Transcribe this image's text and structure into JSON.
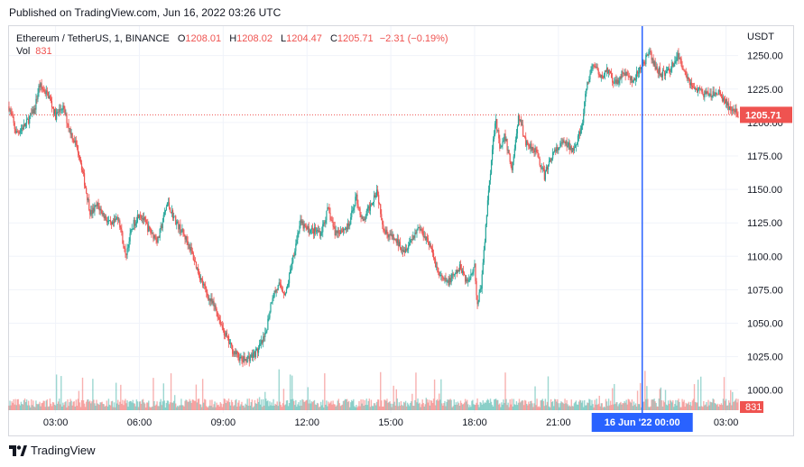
{
  "header": {
    "published": "Published on TradingView.com, Jun 16, 2022 03:26 UTC"
  },
  "legend": {
    "symbol": "Ethereum / TetherUS, 1, BINANCE",
    "open_label": "O",
    "open": "1208.01",
    "high_label": "H",
    "high": "1208.02",
    "low_label": "L",
    "low": "1204.47",
    "close_label": "C",
    "close": "1205.71",
    "change": "−2.31 (−0.19%)",
    "vol_label": "Vol",
    "vol": "831"
  },
  "footer": {
    "brand": "TradingView"
  },
  "colors": {
    "up": "#26a69a",
    "down": "#ef5350",
    "crosshair": "#2962ff",
    "grid": "#f0f3fa",
    "axis_text": "#131722"
  },
  "chart_data": {
    "type": "candlestick",
    "currency": "USDT",
    "ylim": [
      985,
      1272
    ],
    "y_ticks": [
      1000,
      1025,
      1050,
      1075,
      1100,
      1125,
      1150,
      1175,
      1200,
      1225,
      1250
    ],
    "y_tick_labels": [
      "1000.00",
      "1025.00",
      "1050.00",
      "1075.00",
      "1100.00",
      "1125.00",
      "1150.00",
      "1175.00",
      "1200.00",
      "1225.00",
      "1250.00"
    ],
    "x_ticks": [
      "03:00",
      "06:00",
      "09:00",
      "12:00",
      "15:00",
      "18:00",
      "21:00",
      "03:00"
    ],
    "x_tick_times": [
      "Jun 15 03:00",
      "Jun 15 06:00",
      "Jun 15 09:00",
      "Jun 15 12:00",
      "Jun 15 15:00",
      "Jun 15 18:00",
      "Jun 15 21:00",
      "Jun 16 03:00"
    ],
    "x_range": [
      "Jun 15 01:20",
      "Jun 16 03:26"
    ],
    "crosshair": {
      "time": "Jun 16 00:00",
      "label": "16 Jun '22   00:00"
    },
    "last_price": {
      "value": 1205.71,
      "label": "1205.71"
    },
    "volume_label": "831",
    "price_path": [
      [
        "Jun 15 01:20",
        1212
      ],
      [
        "Jun 15 01:35",
        1192
      ],
      [
        "Jun 15 01:55",
        1198
      ],
      [
        "Jun 15 02:15",
        1210
      ],
      [
        "Jun 15 02:25",
        1228
      ],
      [
        "Jun 15 02:45",
        1220
      ],
      [
        "Jun 15 03:00",
        1205
      ],
      [
        "Jun 15 03:15",
        1212
      ],
      [
        "Jun 15 03:30",
        1195
      ],
      [
        "Jun 15 03:50",
        1178
      ],
      [
        "Jun 15 04:05",
        1150
      ],
      [
        "Jun 15 04:15",
        1132
      ],
      [
        "Jun 15 04:30",
        1138
      ],
      [
        "Jun 15 05:00",
        1122
      ],
      [
        "Jun 15 05:15",
        1130
      ],
      [
        "Jun 15 05:30",
        1100
      ],
      [
        "Jun 15 05:45",
        1122
      ],
      [
        "Jun 15 06:00",
        1133
      ],
      [
        "Jun 15 06:20",
        1120
      ],
      [
        "Jun 15 06:40",
        1112
      ],
      [
        "Jun 15 07:00",
        1140
      ],
      [
        "Jun 15 07:20",
        1125
      ],
      [
        "Jun 15 07:45",
        1110
      ],
      [
        "Jun 15 08:00",
        1095
      ],
      [
        "Jun 15 08:15",
        1080
      ],
      [
        "Jun 15 08:30",
        1068
      ],
      [
        "Jun 15 08:45",
        1060
      ],
      [
        "Jun 15 09:00",
        1045
      ],
      [
        "Jun 15 09:20",
        1030
      ],
      [
        "Jun 15 09:40",
        1022
      ],
      [
        "Jun 15 10:00",
        1025
      ],
      [
        "Jun 15 10:15",
        1030
      ],
      [
        "Jun 15 10:30",
        1040
      ],
      [
        "Jun 15 10:45",
        1070
      ],
      [
        "Jun 15 11:00",
        1078
      ],
      [
        "Jun 15 11:15",
        1072
      ],
      [
        "Jun 15 11:30",
        1100
      ],
      [
        "Jun 15 11:45",
        1125
      ],
      [
        "Jun 15 12:00",
        1120
      ],
      [
        "Jun 15 12:30",
        1118
      ],
      [
        "Jun 15 12:45",
        1135
      ],
      [
        "Jun 15 13:00",
        1118
      ],
      [
        "Jun 15 13:30",
        1122
      ],
      [
        "Jun 15 13:45",
        1145
      ],
      [
        "Jun 15 14:00",
        1125
      ],
      [
        "Jun 15 14:30",
        1150
      ],
      [
        "Jun 15 14:45",
        1120
      ],
      [
        "Jun 15 15:00",
        1115
      ],
      [
        "Jun 15 15:30",
        1105
      ],
      [
        "Jun 15 16:00",
        1122
      ],
      [
        "Jun 15 16:20",
        1112
      ],
      [
        "Jun 15 16:45",
        1085
      ],
      [
        "Jun 15 17:00",
        1080
      ],
      [
        "Jun 15 17:15",
        1085
      ],
      [
        "Jun 15 17:30",
        1092
      ],
      [
        "Jun 15 17:45",
        1080
      ],
      [
        "Jun 15 18:00",
        1095
      ],
      [
        "Jun 15 18:05",
        1063
      ],
      [
        "Jun 15 18:15",
        1080
      ],
      [
        "Jun 15 18:30",
        1150
      ],
      [
        "Jun 15 18:45",
        1205
      ],
      [
        "Jun 15 18:55",
        1178
      ],
      [
        "Jun 15 19:05",
        1190
      ],
      [
        "Jun 15 19:20",
        1165
      ],
      [
        "Jun 15 19:35",
        1205
      ],
      [
        "Jun 15 19:50",
        1185
      ],
      [
        "Jun 15 20:10",
        1180
      ],
      [
        "Jun 15 20:30",
        1160
      ],
      [
        "Jun 15 20:45",
        1175
      ],
      [
        "Jun 15 21:10",
        1185
      ],
      [
        "Jun 15 21:30",
        1180
      ],
      [
        "Jun 15 21:50",
        1195
      ],
      [
        "Jun 15 22:00",
        1225
      ],
      [
        "Jun 15 22:15",
        1245
      ],
      [
        "Jun 15 22:30",
        1232
      ],
      [
        "Jun 15 22:45",
        1240
      ],
      [
        "Jun 15 23:00",
        1228
      ],
      [
        "Jun 15 23:20",
        1238
      ],
      [
        "Jun 15 23:40",
        1230
      ],
      [
        "Jun 16 00:00",
        1243
      ],
      [
        "Jun 16 00:15",
        1252
      ],
      [
        "Jun 16 00:30",
        1240
      ],
      [
        "Jun 16 00:45",
        1236
      ],
      [
        "Jun 16 01:00",
        1240
      ],
      [
        "Jun 16 01:15",
        1250
      ],
      [
        "Jun 16 01:30",
        1240
      ],
      [
        "Jun 16 01:45",
        1228
      ],
      [
        "Jun 16 02:00",
        1224
      ],
      [
        "Jun 16 02:20",
        1220
      ],
      [
        "Jun 16 02:45",
        1222
      ],
      [
        "Jun 16 03:10",
        1210
      ],
      [
        "Jun 16 03:26",
        1205.71
      ]
    ]
  }
}
